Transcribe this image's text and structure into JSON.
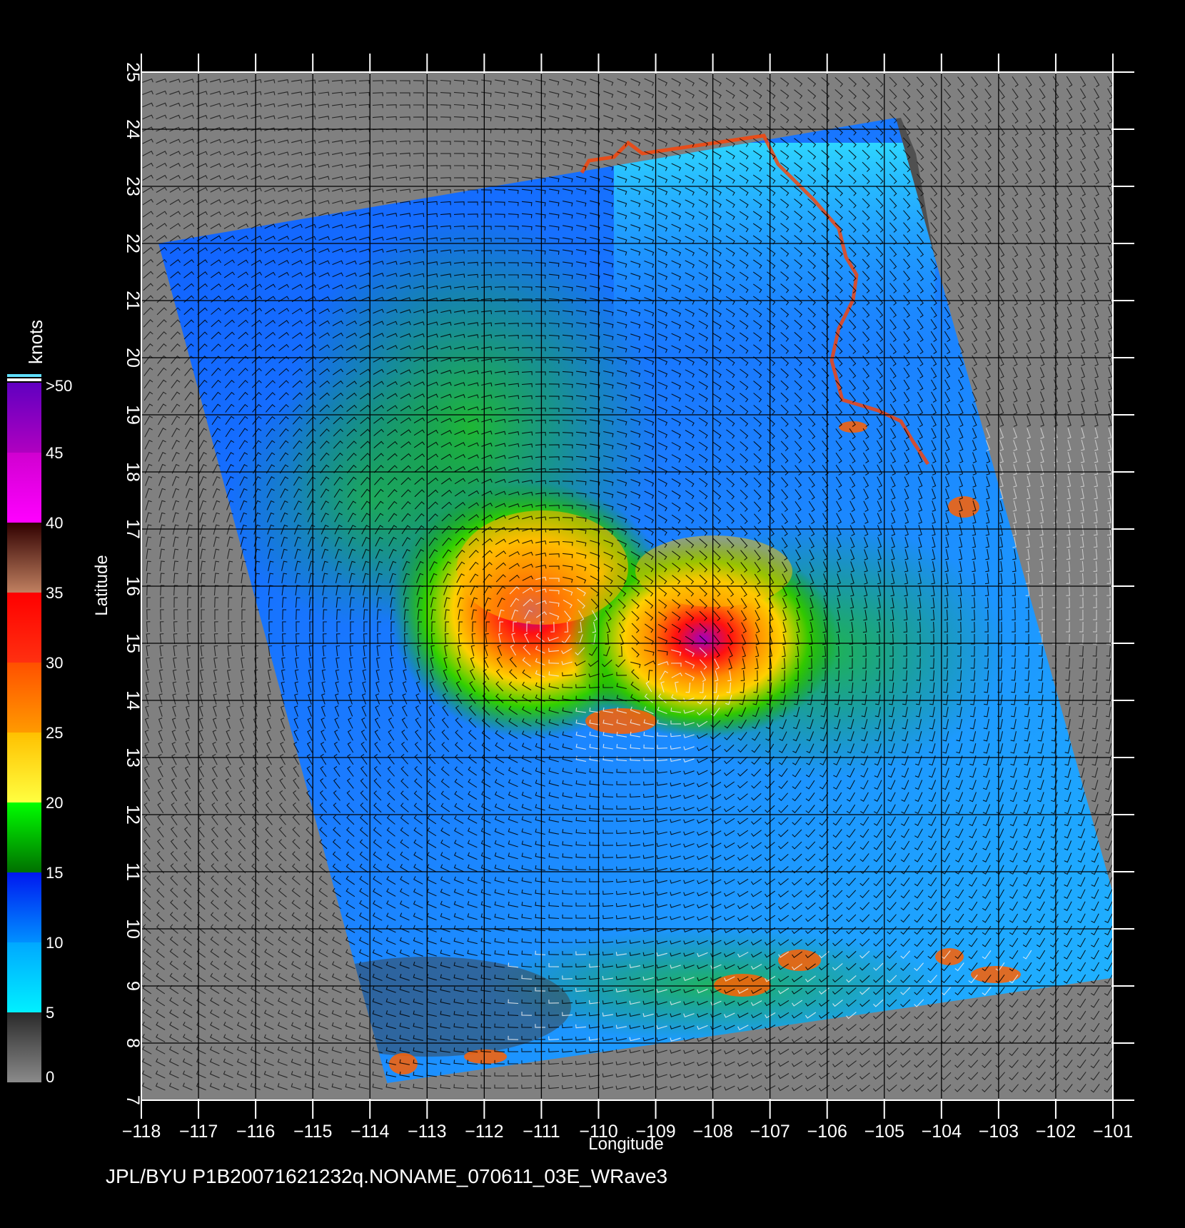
{
  "map": {
    "axes": {
      "xlabel": "Longitude",
      "ylabel": "Latitude",
      "lon_range": [
        -118,
        -101
      ],
      "lat_range": [
        7,
        25
      ],
      "lon_ticks": [
        -118,
        -117,
        -116,
        -115,
        -114,
        -113,
        -112,
        -111,
        -110,
        -109,
        -108,
        -107,
        -106,
        -105,
        -104,
        -103,
        -102,
        -101
      ],
      "lon_tick_labels": [
        "−118",
        "−117",
        "−116",
        "−115",
        "−114",
        "−113",
        "−112",
        "−111",
        "−110",
        "−109",
        "−108",
        "−107",
        "−106",
        "−105",
        "−104",
        "−103",
        "−102",
        "−101"
      ],
      "lat_ticks": [
        7,
        8,
        9,
        10,
        11,
        12,
        13,
        14,
        15,
        16,
        17,
        18,
        19,
        20,
        21,
        22,
        23,
        24,
        25
      ],
      "lat_tick_labels": [
        "7",
        "8",
        "9",
        "10",
        "11",
        "12",
        "13",
        "14",
        "15",
        "16",
        "17",
        "18",
        "19",
        "20",
        "21",
        "22",
        "23",
        "24",
        "25"
      ],
      "grid": true
    },
    "colorbar": {
      "unit": "knots",
      "labels": [
        "0",
        "5",
        "10",
        "15",
        "20",
        "25",
        "30",
        "35",
        "40",
        "45",
        ">50"
      ],
      "segments": [
        {
          "from": 0,
          "to": 5,
          "colors": [
            "#8a8a8a",
            "#2a2a2a"
          ]
        },
        {
          "from": 5,
          "to": 10,
          "colors": [
            "#00f0ff",
            "#00a8ff"
          ]
        },
        {
          "from": 10,
          "to": 15,
          "colors": [
            "#0090ff",
            "#0018f0"
          ]
        },
        {
          "from": 15,
          "to": 20,
          "colors": [
            "#007000",
            "#00ff00"
          ]
        },
        {
          "from": 20,
          "to": 25,
          "colors": [
            "#ffff40",
            "#ffc000"
          ]
        },
        {
          "from": 25,
          "to": 30,
          "colors": [
            "#ff9a00",
            "#ff5000"
          ]
        },
        {
          "from": 30,
          "to": 35,
          "colors": [
            "#ff3010",
            "#ff0000"
          ]
        },
        {
          "from": 35,
          "to": 40,
          "colors": [
            "#c08060",
            "#300000"
          ]
        },
        {
          "from": 40,
          "to": 45,
          "colors": [
            "#ff00ff",
            "#d000d0"
          ]
        },
        {
          "from": 45,
          "to": 50,
          "colors": [
            "#b000c0",
            "#6000c0"
          ]
        }
      ]
    },
    "swath_lonlat": [
      [
        -117.7,
        22.0
      ],
      [
        -104.8,
        24.2
      ],
      [
        -100.6,
        9.2
      ],
      [
        -113.7,
        7.3
      ]
    ],
    "land_color": "#505050",
    "background_color": "#808080",
    "wind_centers_lonlat": [
      [
        -110.9,
        15.3
      ],
      [
        -108.4,
        14.2
      ]
    ],
    "caption": "JPL/BYU  P1B20071621232q.NONAME_070611_03E_WRave3"
  }
}
